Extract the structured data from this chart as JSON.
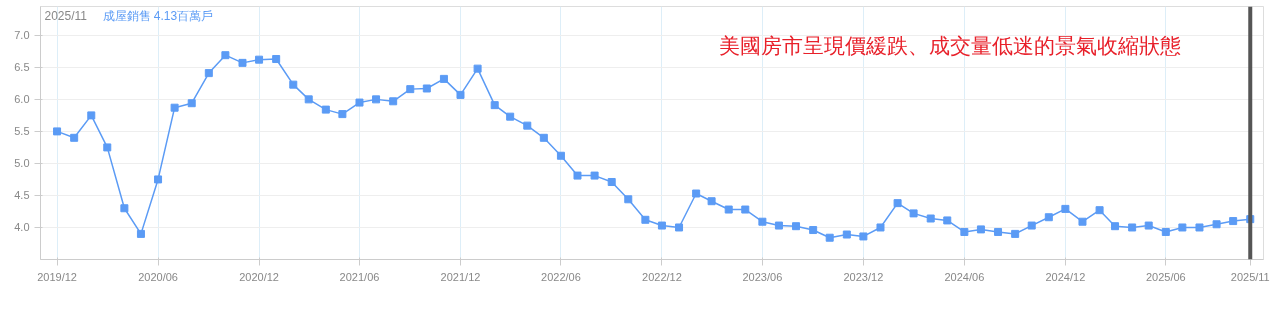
{
  "chart_data": {
    "type": "line",
    "title": "美國房市呈現價緩跌、成交量低迷的景氣收縮狀態",
    "annotations": [
      "2025/11",
      "成屋銷售 4.13百萬戶"
    ],
    "x": [
      "2019-12",
      "2020-01",
      "2020-02",
      "2020-03",
      "2020-04",
      "2020-05",
      "2020-06",
      "2020-07",
      "2020-08",
      "2020-09",
      "2020-10",
      "2020-11",
      "2020-12",
      "2021-01",
      "2021-02",
      "2021-03",
      "2021-04",
      "2021-05",
      "2021-06",
      "2021-07",
      "2021-08",
      "2021-09",
      "2021-10",
      "2021-11",
      "2021-12",
      "2022-01",
      "2022-02",
      "2022-03",
      "2022-04",
      "2022-05",
      "2022-06",
      "2022-07",
      "2022-08",
      "2022-09",
      "2022-10",
      "2022-11",
      "2022-12",
      "2023-01",
      "2023-02",
      "2023-03",
      "2023-04",
      "2023-05",
      "2023-06",
      "2023-07",
      "2023-08",
      "2023-09",
      "2023-10",
      "2023-11",
      "2023-12",
      "2024-01",
      "2024-02",
      "2024-03",
      "2024-04",
      "2024-05",
      "2024-06",
      "2024-07",
      "2024-08",
      "2024-09",
      "2024-10",
      "2024-11",
      "2024-12",
      "2025-01",
      "2025-02",
      "2025-03",
      "2025-04",
      "2025-05",
      "2025-06",
      "2025-07",
      "2025-08",
      "2025-09",
      "2025-10",
      "2025-11"
    ],
    "series": [
      {
        "color": "#5b9bf5",
        "values": [
          5.5,
          5.4,
          5.75,
          5.25,
          4.3,
          3.9,
          4.75,
          5.87,
          5.94,
          6.41,
          6.69,
          6.57,
          6.62,
          6.63,
          6.23,
          6.0,
          5.84,
          5.77,
          5.95,
          6.0,
          5.97,
          6.16,
          6.17,
          6.32,
          6.07,
          6.48,
          5.91,
          5.73,
          5.59,
          5.4,
          5.12,
          4.81,
          4.81,
          4.71,
          4.44,
          4.12,
          4.03,
          4.0,
          4.53,
          4.41,
          4.28,
          4.28,
          4.09,
          4.03,
          4.02,
          3.96,
          3.84,
          3.89,
          3.86,
          4.0,
          4.38,
          4.22,
          4.14,
          4.11,
          3.93,
          3.97,
          3.93,
          3.9,
          4.03,
          4.16,
          4.29,
          4.09,
          4.27,
          4.02,
          4.0,
          4.03,
          3.93,
          4.0,
          4.0,
          4.05,
          4.1,
          4.13
        ]
      }
    ],
    "xlim": [
      "2019-11-01",
      "2025-11-25"
    ],
    "xticks": [
      {
        "value": "2019-12",
        "label": "2019/12"
      },
      {
        "value": "2020-06",
        "label": "2020/06"
      },
      {
        "value": "2020-12",
        "label": "2020/12"
      },
      {
        "value": "2021-06",
        "label": "2021/06"
      },
      {
        "value": "2021-12",
        "label": "2021/12"
      },
      {
        "value": "2022-06",
        "label": "2022/06"
      },
      {
        "value": "2022-12",
        "label": "2022/12"
      },
      {
        "value": "2023-06",
        "label": "2023/06"
      },
      {
        "value": "2023-12",
        "label": "2023/12"
      },
      {
        "value": "2024-06",
        "label": "2024/06"
      },
      {
        "value": "2024-12",
        "label": "2024/12"
      },
      {
        "value": "2025-06",
        "label": "2025/06"
      },
      {
        "value": "2025-11",
        "label": "2025/11"
      }
    ],
    "ylim": [
      3.5,
      7.45
    ],
    "yticks": [
      {
        "value": 4,
        "label": "4.0"
      },
      {
        "value": 4.5,
        "label": "4.5"
      },
      {
        "value": 5,
        "label": "5.0"
      },
      {
        "value": 5.5,
        "label": "5.5"
      },
      {
        "value": 6,
        "label": "6.0"
      },
      {
        "value": 6.5,
        "label": "6.5"
      },
      {
        "value": 7,
        "label": "7.0"
      }
    ],
    "ref_lines": [
      {
        "axis": "x",
        "value": "2025-11",
        "color": "#555555"
      }
    ],
    "grid": true,
    "marker": "square",
    "line_style": "solid"
  }
}
